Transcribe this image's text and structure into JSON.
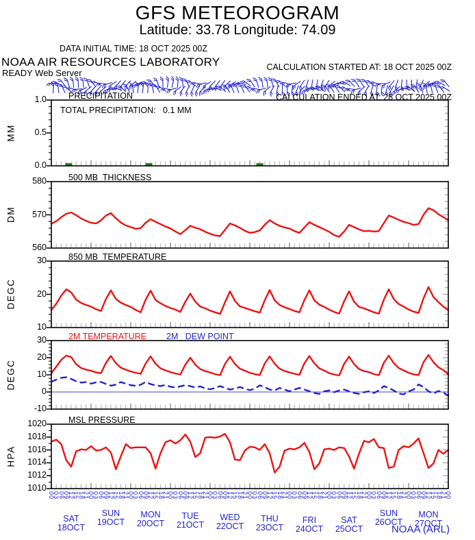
{
  "title": "GFS METEOROGRAM",
  "subtitle": "Latitude: 33.78 Longitude:  74.09",
  "header": {
    "data_initial_time": "DATA INITIAL TIME: 18 OCT 2025 00Z",
    "calc_started": "CALCULATION STARTED AT: 18 OCT 2025 00Z",
    "calc_ended": "CALCULATION ENDED AT: 28 OCT 2025 00Z",
    "organization": "NOAA AIR RESOURCES LABORATORY",
    "server": "READY Web Server"
  },
  "footer": {
    "credit": "NOAA (ARL)"
  },
  "colors": {
    "red": "#ee1111",
    "blue": "#2323cd",
    "green": "#1e7a1e",
    "gray_tick": "#bbbbbb",
    "day_tick": "#8a8a8a",
    "axis": "#000000",
    "zero_line": "#4444cc"
  },
  "xaxis": {
    "hours_start": 0,
    "hours_end": 240,
    "hours_step": 3,
    "hour_label_pattern": [
      "00",
      "03",
      "06",
      "09",
      "12",
      "15",
      "18",
      "21"
    ],
    "day_labels": [
      {
        "day": "SAT",
        "date": "18OCT",
        "dy": 8
      },
      {
        "day": "SUN",
        "date": "19OCT",
        "dy": 0
      },
      {
        "day": "MON",
        "date": "20OCT",
        "dy": 2
      },
      {
        "day": "TUE",
        "date": "21OCT",
        "dy": 4
      },
      {
        "day": "WED",
        "date": "22OCT",
        "dy": 6
      },
      {
        "day": "THU",
        "date": "23OCT",
        "dy": 8
      },
      {
        "day": "FRI",
        "date": "24OCT",
        "dy": 10
      },
      {
        "day": "SAT",
        "date": "25OCT",
        "dy": 10
      },
      {
        "day": "SUN",
        "date": "26OCT",
        "dy": 0
      },
      {
        "day": "MON",
        "date": "27OCT",
        "dy": 2
      }
    ]
  },
  "chart_data": [
    {
      "id": "precipitation",
      "type": "bar",
      "title": "PRECIPITATION",
      "ylabel": "MM",
      "ylim": [
        0,
        1
      ],
      "y_minor_step": 0.1,
      "yticks": [
        {
          "value": 1.0,
          "label": "1.0"
        },
        {
          "value": 0.5,
          "label": "0.5"
        },
        {
          "value": 0.0,
          "label": "0.0"
        }
      ],
      "annotation": "TOTAL PRECIPITATION:   0.1 MM",
      "bars": {
        "hours": [
          10.5,
          59,
          126
        ],
        "values_mm": [
          0.04,
          0.04,
          0.04
        ],
        "color": "#1e7a1e"
      }
    },
    {
      "id": "thickness",
      "type": "line",
      "title": "500 MB  THICKNESS",
      "ylabel": "DM",
      "ylim": [
        560,
        580
      ],
      "y_minor_step": 2,
      "yticks": [
        {
          "value": 580,
          "label": "580"
        },
        {
          "value": 570,
          "label": "570"
        },
        {
          "value": 560,
          "label": "560"
        }
      ],
      "series": [
        {
          "name": "500 MB THICKNESS",
          "color": "#ee1111",
          "values": [
            567.3,
            568.1,
            569.3,
            570.3,
            570.7,
            569.9,
            568.9,
            568.2,
            567.6,
            567.4,
            568.3,
            569.8,
            570.5,
            569.0,
            567.7,
            566.8,
            566.3,
            565.8,
            566.0,
            567.6,
            568.7,
            567.9,
            567.2,
            566.5,
            565.9,
            565.0,
            564.2,
            565.4,
            566.7,
            566.1,
            565.7,
            564.9,
            564.3,
            563.8,
            563.6,
            565.5,
            567.4,
            566.8,
            566.1,
            565.2,
            564.6,
            564.8,
            565.3,
            567.0,
            568.4,
            567.4,
            566.7,
            566.2,
            565.9,
            565.1,
            564.6,
            566.2,
            567.8,
            567.0,
            566.3,
            565.6,
            564.9,
            563.9,
            563.4,
            565.0,
            567.0,
            566.3,
            565.6,
            565.1,
            565.2,
            565.0,
            565.1,
            567.5,
            569.8,
            569.2,
            568.5,
            567.9,
            567.5,
            567.0,
            567.2,
            570.0,
            572.0,
            571.4,
            570.2,
            569.3,
            568.4
          ]
        }
      ]
    },
    {
      "id": "temp850",
      "type": "line",
      "title": "850 MB  TEMPERATURE",
      "ylabel": "DEGC",
      "ylim": [
        10,
        30
      ],
      "y_minor_step": 2,
      "yticks": [
        {
          "value": 30,
          "label": "30"
        },
        {
          "value": 20,
          "label": "20"
        },
        {
          "value": 10,
          "label": "10"
        }
      ],
      "series": [
        {
          "name": "850 MB TEMPERATURE",
          "color": "#ee1111",
          "values": [
            15.3,
            17.2,
            19.6,
            21.5,
            20.6,
            18.4,
            17.4,
            16.8,
            16.3,
            15.5,
            15.0,
            18.6,
            21.2,
            18.6,
            17.5,
            16.8,
            16.2,
            15.3,
            14.6,
            18.4,
            21.1,
            18.3,
            17.3,
            16.5,
            15.9,
            15.4,
            14.7,
            17.8,
            20.2,
            17.8,
            16.3,
            15.8,
            15.1,
            14.6,
            14.1,
            17.6,
            20.9,
            18.0,
            16.4,
            15.9,
            15.4,
            14.9,
            14.5,
            18.2,
            21.3,
            18.2,
            16.8,
            16.1,
            15.6,
            15.0,
            14.6,
            18.3,
            21.2,
            18.2,
            16.9,
            16.2,
            15.4,
            14.7,
            14.2,
            17.9,
            20.9,
            17.8,
            16.2,
            15.8,
            15.2,
            14.6,
            14.2,
            18.4,
            21.5,
            18.6,
            17.1,
            16.3,
            15.4,
            14.8,
            14.4,
            18.8,
            22.2,
            19.2,
            17.7,
            16.3,
            15.2
          ]
        }
      ]
    },
    {
      "id": "temp2m",
      "type": "line",
      "title": "",
      "legend": [
        {
          "label": "2M TEMPERATURE",
          "color": "#ee1111"
        },
        {
          "label": "2M   DEW POINT",
          "color": "#2323cd"
        }
      ],
      "ylabel": "DEGC",
      "ylim": [
        -10,
        30
      ],
      "y_minor_step": 2,
      "zero_line": 0,
      "yticks": [
        {
          "value": 30,
          "label": "30"
        },
        {
          "value": 20,
          "label": "20"
        },
        {
          "value": 10,
          "label": "10"
        },
        {
          "value": 0,
          "label": "0"
        },
        {
          "value": -10,
          "label": "-10"
        }
      ],
      "series": [
        {
          "name": "2M TEMPERATURE",
          "color": "#ee1111",
          "values": [
            11.0,
            14.8,
            18.8,
            21.2,
            20.4,
            16.2,
            14.0,
            13.0,
            12.4,
            11.4,
            11.0,
            17.0,
            21.0,
            16.8,
            14.2,
            13.0,
            12.0,
            11.2,
            10.6,
            16.6,
            20.8,
            16.5,
            13.8,
            12.6,
            11.6,
            10.8,
            10.2,
            16.0,
            20.0,
            16.0,
            13.4,
            12.2,
            11.4,
            10.4,
            9.8,
            16.4,
            20.6,
            16.3,
            13.6,
            12.4,
            11.2,
            10.4,
            9.9,
            16.6,
            20.8,
            16.5,
            13.6,
            12.3,
            11.4,
            10.6,
            10.0,
            16.8,
            21.0,
            16.7,
            13.8,
            12.5,
            11.0,
            10.2,
            9.6,
            16.4,
            20.7,
            16.3,
            13.4,
            12.2,
            11.6,
            10.4,
            9.8,
            17.0,
            21.2,
            16.9,
            14.0,
            12.6,
            11.2,
            10.3,
            9.9,
            17.4,
            21.6,
            17.4,
            14.4,
            12.8,
            10.3
          ]
        },
        {
          "name": "2M DEW POINT",
          "color": "#2323cd",
          "dash": "8 7",
          "values": [
            6.0,
            7.2,
            8.3,
            8.6,
            7.6,
            6.3,
            5.5,
            5.8,
            4.9,
            5.6,
            5.9,
            4.7,
            3.7,
            4.3,
            5.8,
            4.8,
            4.0,
            3.6,
            4.2,
            5.9,
            4.6,
            3.9,
            3.5,
            4.1,
            3.1,
            2.6,
            3.3,
            4.0,
            3.4,
            2.6,
            3.3,
            2.1,
            1.6,
            2.3,
            3.4,
            2.4,
            1.4,
            2.1,
            2.9,
            1.9,
            1.1,
            1.9,
            3.9,
            2.9,
            1.4,
            0.9,
            2.4,
            1.4,
            0.4,
            1.4,
            2.4,
            1.4,
            0.4,
            -0.6,
            -1.1,
            0.4,
            0.9,
            -0.1,
            0.9,
            1.4,
            0.4,
            -0.6,
            -1.1,
            -0.1,
            0.4,
            -0.6,
            0.9,
            3.4,
            2.4,
            0.9,
            -0.9,
            -1.4,
            0.4,
            1.4,
            4.4,
            2.9,
            0.4,
            -0.9,
            0.6,
            -0.4,
            -2.1
          ]
        }
      ]
    },
    {
      "id": "mslp",
      "type": "line",
      "title": "MSL PRESSURE",
      "ylabel": "HPA",
      "ylim": [
        1010,
        1020
      ],
      "y_minor_step": 1,
      "yticks": [
        {
          "value": 1020,
          "label": "1020"
        },
        {
          "value": 1018,
          "label": "1018"
        },
        {
          "value": 1016,
          "label": "1016"
        },
        {
          "value": 1014,
          "label": "1014"
        },
        {
          "value": 1012,
          "label": "1012"
        },
        {
          "value": 1010,
          "label": "1010"
        }
      ],
      "series": [
        {
          "name": "MSL PRESSURE",
          "color": "#ee1111",
          "values": [
            1017.3,
            1017.6,
            1016.9,
            1014.4,
            1013.4,
            1015.8,
            1016.1,
            1016.0,
            1016.6,
            1015.9,
            1016.0,
            1016.4,
            1015.6,
            1013.0,
            1015.0,
            1016.9,
            1016.3,
            1016.4,
            1016.4,
            1016.4,
            1015.5,
            1013.1,
            1015.5,
            1017.2,
            1017.5,
            1017.0,
            1017.5,
            1018.4,
            1017.3,
            1014.9,
            1015.5,
            1017.9,
            1018.0,
            1017.9,
            1018.1,
            1018.5,
            1017.2,
            1014.5,
            1014.4,
            1015.9,
            1016.5,
            1016.4,
            1016.0,
            1016.9,
            1015.5,
            1012.5,
            1013.4,
            1015.9,
            1016.2,
            1016.1,
            1016.4,
            1017.1,
            1015.7,
            1013.0,
            1013.9,
            1016.1,
            1016.2,
            1016.0,
            1016.4,
            1016.3,
            1015.0,
            1013.1,
            1015.4,
            1017.4,
            1017.2,
            1017.7,
            1016.4,
            1016.3,
            1013.2,
            1013.4,
            1016.0,
            1016.6,
            1016.4,
            1017.0,
            1017.8,
            1015.5,
            1013.2,
            1013.9,
            1016.0,
            1015.4,
            1016.0
          ]
        }
      ]
    }
  ]
}
